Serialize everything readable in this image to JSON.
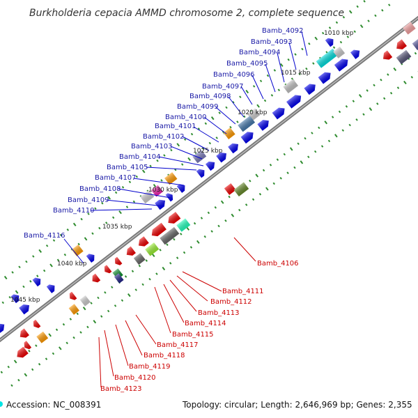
{
  "title": "Burkholderia cepacia AMMD chromosome 2, complete sequence",
  "footer": {
    "accession": "Accession: NC_008391",
    "summary": "Topology: circular; Length: 2,646,969 bp; Genes: 2,355"
  },
  "colors": {
    "forward_label": "#1a1aa6",
    "reverse_label": "#cc0000",
    "backbone": "#777777",
    "tick": "#2e8b2e"
  },
  "kbp_labels": [
    "1010 kbp",
    "1015 kbp",
    "1020 kbp",
    "1025 kbp",
    "1030 kbp",
    "1035 kbp",
    "1040 kbp",
    "1045 kbp"
  ],
  "forward_genes": [
    "Bamb_4092",
    "Bamb_4093",
    "Bamb_4094",
    "Bamb_4095",
    "Bamb_4096",
    "Bamb_4097",
    "Bamb_4098",
    "Bamb_4099",
    "Bamb_4100",
    "Bamb_4101",
    "Bamb_4102",
    "Bamb_4103",
    "Bamb_4104",
    "Bamb_4105",
    "Bamb_4107",
    "Bamb_4108",
    "Bamb_4109",
    "Bamb_4110",
    "Bamb_4116"
  ],
  "reverse_genes": [
    "Bamb_4106",
    "Bamb_4111",
    "Bamb_4112",
    "Bamb_4113",
    "Bamb_4114",
    "Bamb_4115",
    "Bamb_4117",
    "Bamb_4118",
    "Bamb_4119",
    "Bamb_4120",
    "Bamb_4123"
  ]
}
